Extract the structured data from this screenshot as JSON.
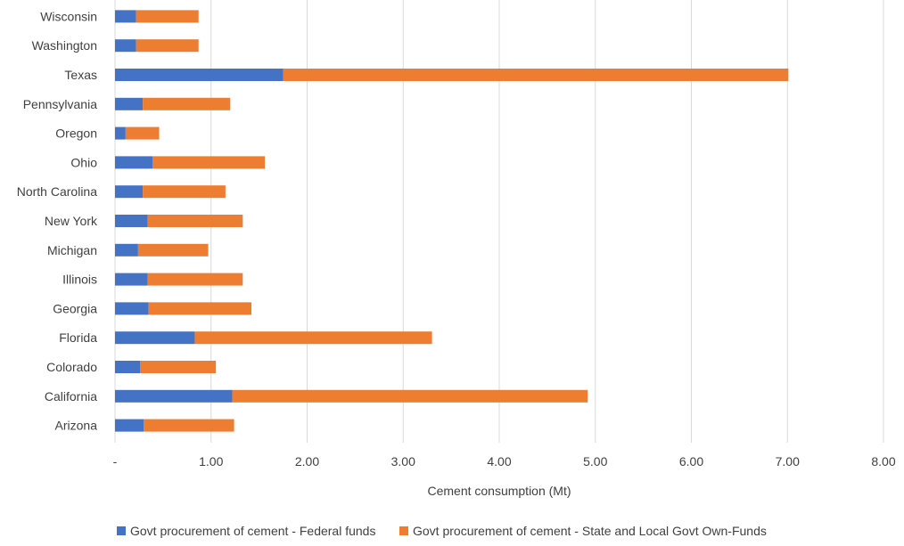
{
  "chart_data": {
    "type": "bar",
    "orientation": "horizontal",
    "stacked": true,
    "title": "",
    "xlabel": "Cement consumption (Mt)",
    "ylabel": "",
    "xlim": [
      0,
      8
    ],
    "grid": true,
    "legend_position": "bottom",
    "x_ticks": [
      {
        "value": 0,
        "label": "-"
      },
      {
        "value": 1,
        "label": "1.00"
      },
      {
        "value": 2,
        "label": "2.00"
      },
      {
        "value": 3,
        "label": "3.00"
      },
      {
        "value": 4,
        "label": "4.00"
      },
      {
        "value": 5,
        "label": "5.00"
      },
      {
        "value": 6,
        "label": "6.00"
      },
      {
        "value": 7,
        "label": "7.00"
      },
      {
        "value": 8,
        "label": "8.00"
      }
    ],
    "categories": [
      "Wisconsin",
      "Washington",
      "Texas",
      "Pennsylvania",
      "Oregon",
      "Ohio",
      "North Carolina",
      "New York",
      "Michigan",
      "Illinois",
      "Georgia",
      "Florida",
      "Colorado",
      "California",
      "Arizona"
    ],
    "series": [
      {
        "name": "Govt procurement of cement - Federal funds",
        "color": "#4472c4",
        "values": [
          0.22,
          0.22,
          1.75,
          0.29,
          0.11,
          0.39,
          0.29,
          0.34,
          0.24,
          0.34,
          0.35,
          0.83,
          0.26,
          1.22,
          0.3
        ]
      },
      {
        "name": "Govt procurement of cement - State and Local Govt Own-Funds",
        "color": "#ed7d31",
        "values": [
          0.65,
          0.65,
          5.26,
          0.91,
          0.35,
          1.17,
          0.86,
          0.99,
          0.73,
          0.99,
          1.07,
          2.47,
          0.79,
          3.7,
          0.94
        ]
      }
    ]
  }
}
